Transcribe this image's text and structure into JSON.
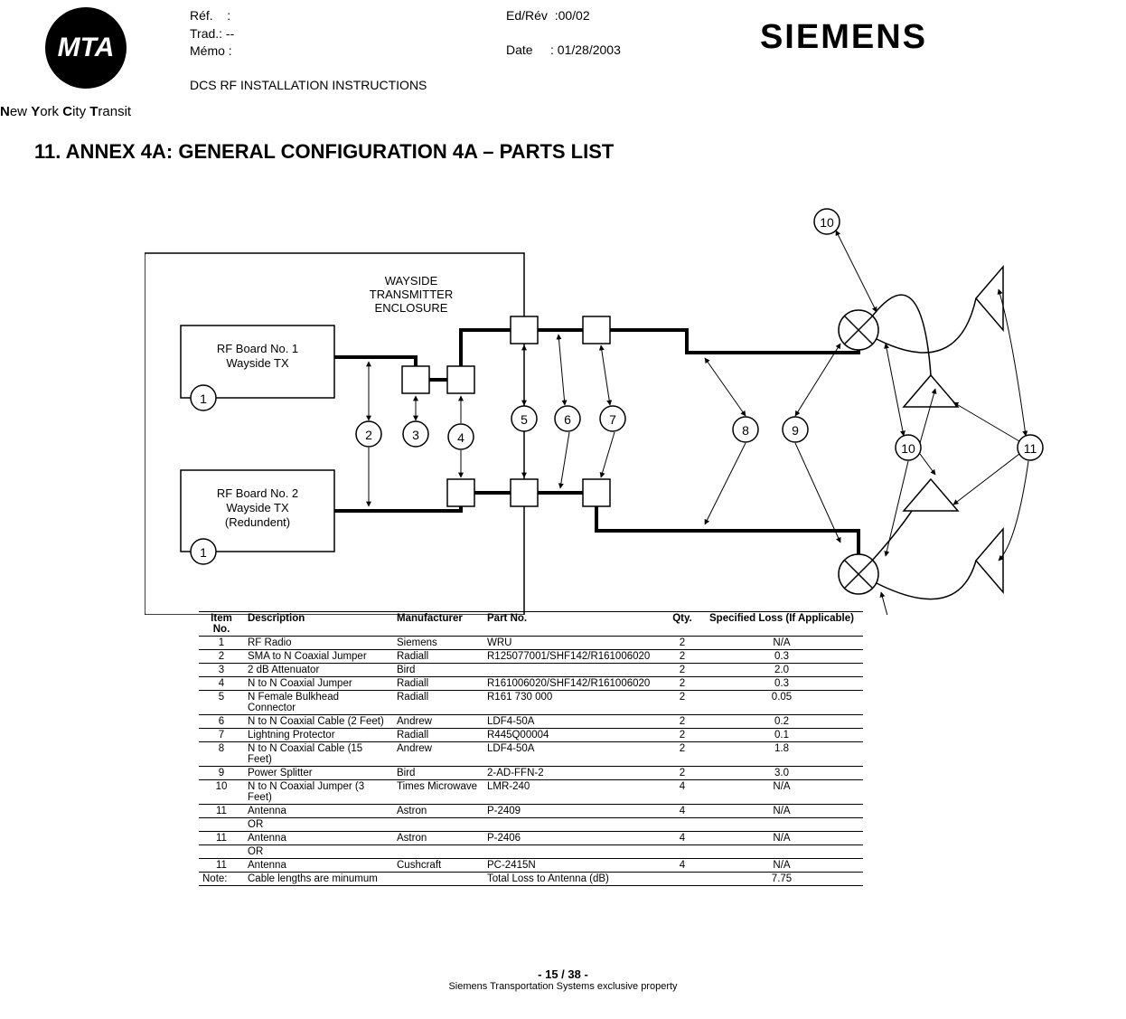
{
  "header": {
    "mta": "MTA",
    "nyct_html": "New York City Transit",
    "ref_label": "Réf.",
    "ref_value": ":",
    "trad_label": "Trad.",
    "trad_value": ": --",
    "memo_label": "Mémo",
    "memo_value": ":",
    "ed_label": "Ed/Rév",
    "ed_value": ":00/02",
    "date_label": "Date",
    "date_value": ": 01/28/2003",
    "siemens": "SIEMENS",
    "manual_title": "DCS RF INSTALLATION INSTRUCTIONS"
  },
  "section_heading": "11.  ANNEX 4A: GENERAL CONFIGURATION 4A – PARTS LIST",
  "diagram": {
    "enclosure_label_l1": "WAYSIDE",
    "enclosure_label_l2": "TRANSMITTER",
    "enclosure_label_l3": "ENCLOSURE",
    "board1_l1": "RF Board No. 1",
    "board1_l2": "Wayside TX",
    "board2_l1": "RF Board No. 2",
    "board2_l2": "Wayside TX",
    "board2_l3": "(Redundent)",
    "callouts": {
      "c1a": "1",
      "c1b": "1",
      "c2": "2",
      "c3": "3",
      "c4": "4",
      "c5": "5",
      "c6": "6",
      "c7": "7",
      "c8": "8",
      "c9": "9",
      "c10a": "10",
      "c10b": "10",
      "c10c": "10",
      "c11": "11"
    },
    "style": {
      "stroke": "#000000",
      "thin": 1.5,
      "thick": 4,
      "callout_radius": 14,
      "font_size": 14,
      "label_font_size": 13
    }
  },
  "table": {
    "headers": [
      "Item No.",
      "Description",
      "Manufacturer",
      "Part No.",
      "Qty.",
      "Specified Loss (If Applicable)"
    ],
    "rows": [
      [
        "1",
        "RF Radio",
        "Siemens",
        "WRU",
        "2",
        "N/A"
      ],
      [
        "2",
        "SMA to N Coaxial Jumper",
        "Radiall",
        "R125077001/SHF142/R161006020",
        "2",
        "0.3"
      ],
      [
        "3",
        "2 dB Attenuator",
        "Bird",
        "",
        "2",
        "2.0"
      ],
      [
        "4",
        "N to N Coaxial Jumper",
        "Radiall",
        "R161006020/SHF142/R161006020",
        "2",
        "0.3"
      ],
      [
        "5",
        "N Female Bulkhead Connector",
        "Radiall",
        "R161 730 000",
        "2",
        "0.05"
      ],
      [
        "6",
        "N to N Coaxial Cable (2 Feet)",
        "Andrew",
        "LDF4-50A",
        "2",
        "0.2"
      ],
      [
        "7",
        "Lightning Protector",
        "Radiall",
        "R445Q00004",
        "2",
        "0.1"
      ],
      [
        "8",
        "N to N Coaxial Cable (15 Feet)",
        "Andrew",
        "LDF4-50A",
        "2",
        "1.8"
      ],
      [
        "9",
        "Power Splitter",
        "Bird",
        "2-AD-FFN-2",
        "2",
        "3.0"
      ],
      [
        "10",
        "N to N Coaxial Jumper (3 Feet)",
        "Times Microwave",
        "LMR-240",
        "4",
        "N/A"
      ],
      [
        "11",
        "Antenna",
        "Astron",
        "P-2409",
        "4",
        "N/A"
      ],
      [
        "",
        "OR",
        "",
        "",
        "",
        ""
      ],
      [
        "11",
        "Antenna",
        "Astron",
        "P-2406",
        "4",
        "N/A"
      ],
      [
        "",
        "OR",
        "",
        "",
        "",
        ""
      ],
      [
        "11",
        "Antenna",
        "Cushcraft",
        "PC-2415N",
        "4",
        "N/A"
      ]
    ],
    "note_label": "Note:",
    "note_text": "Cable lengths are minumum",
    "total_label": "Total Loss to Antenna (dB)",
    "total_value": "7.75"
  },
  "footer": {
    "page": "- 15 / 38 -",
    "owner": "Siemens Transportation Systems exclusive property"
  }
}
